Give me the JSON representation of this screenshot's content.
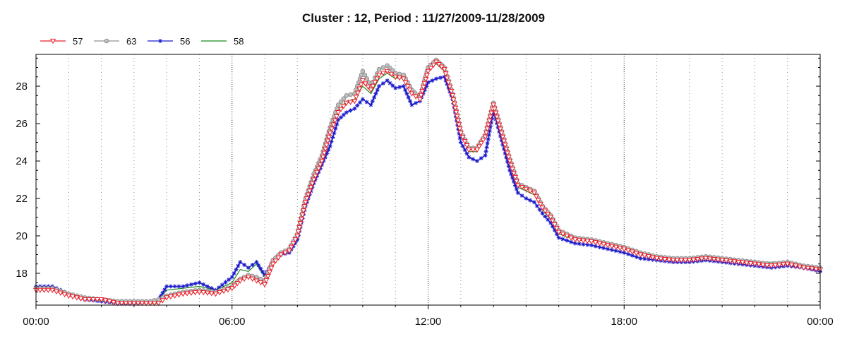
{
  "chart_data": {
    "type": "line",
    "title": "Cluster : 12, Period : 11/27/2009-11/28/2009",
    "xlabel": "",
    "ylabel": "",
    "x_ticks": [
      "00:00",
      "06:00",
      "12:00",
      "18:00",
      "00:00"
    ],
    "x_tick_hours": [
      0,
      6,
      12,
      18,
      24
    ],
    "y_ticks": [
      18,
      20,
      22,
      24,
      26,
      28
    ],
    "xlim": [
      0,
      24
    ],
    "ylim": [
      16.3,
      29.7
    ],
    "grid": true,
    "legend_position": "top-left",
    "series": [
      {
        "name": "57",
        "color": "#e8202a",
        "marker": "triangle-down",
        "x": [
          0,
          0.5,
          1,
          1.5,
          2,
          2.5,
          3,
          3.5,
          3.75,
          4,
          4.5,
          5,
          5.5,
          6,
          6.25,
          6.5,
          6.75,
          7,
          7.25,
          7.5,
          7.75,
          8,
          8.25,
          8.5,
          8.75,
          9,
          9.25,
          9.5,
          9.75,
          10,
          10.25,
          10.5,
          10.75,
          11,
          11.25,
          11.5,
          11.75,
          12,
          12.25,
          12.5,
          12.75,
          13,
          13.25,
          13.5,
          13.75,
          14,
          14.25,
          14.5,
          14.75,
          15,
          15.25,
          15.5,
          15.75,
          16,
          16.5,
          17,
          17.5,
          18,
          18.5,
          19,
          19.5,
          20,
          20.5,
          21,
          21.5,
          22,
          22.5,
          23,
          23.5,
          24
        ],
        "y": [
          17.1,
          17.1,
          16.8,
          16.6,
          16.6,
          16.4,
          16.4,
          16.4,
          16.4,
          16.7,
          16.9,
          17.0,
          16.9,
          17.2,
          17.6,
          17.8,
          17.6,
          17.4,
          18.5,
          19.0,
          19.2,
          20.0,
          21.8,
          23.0,
          24.0,
          25.5,
          26.6,
          27.1,
          27.2,
          28.3,
          27.8,
          28.6,
          28.8,
          28.5,
          28.4,
          27.6,
          27.3,
          28.8,
          29.3,
          28.9,
          27.5,
          25.5,
          24.6,
          24.6,
          25.3,
          27.0,
          25.5,
          24.0,
          22.7,
          22.5,
          22.3,
          21.5,
          21.0,
          20.2,
          19.8,
          19.7,
          19.5,
          19.3,
          19.0,
          18.8,
          18.7,
          18.7,
          18.8,
          18.7,
          18.6,
          18.5,
          18.4,
          18.5,
          18.3,
          18.2
        ]
      },
      {
        "name": "63",
        "color": "#909090",
        "marker": "circle",
        "x": [
          0,
          0.5,
          1,
          1.5,
          2,
          2.5,
          3,
          3.5,
          3.75,
          4,
          4.5,
          5,
          5.5,
          6,
          6.25,
          6.5,
          6.75,
          7,
          7.25,
          7.5,
          7.75,
          8,
          8.25,
          8.5,
          8.75,
          9,
          9.25,
          9.5,
          9.75,
          10,
          10.25,
          10.5,
          10.75,
          11,
          11.25,
          11.5,
          11.75,
          12,
          12.25,
          12.5,
          12.75,
          13,
          13.25,
          13.5,
          13.75,
          14,
          14.25,
          14.5,
          14.75,
          15,
          15.25,
          15.5,
          15.75,
          16,
          16.5,
          17,
          17.5,
          18,
          18.5,
          19,
          19.5,
          20,
          20.5,
          21,
          21.5,
          22,
          22.5,
          23,
          23.5,
          24
        ],
        "y": [
          17.2,
          17.2,
          16.9,
          16.7,
          16.6,
          16.5,
          16.5,
          16.5,
          16.6,
          16.8,
          17.0,
          17.1,
          17.0,
          17.3,
          17.7,
          17.9,
          17.8,
          17.6,
          18.7,
          19.1,
          19.3,
          20.1,
          22.0,
          23.3,
          24.3,
          25.8,
          27.0,
          27.5,
          27.6,
          28.8,
          28.0,
          28.9,
          29.1,
          28.7,
          28.6,
          27.8,
          27.4,
          29.0,
          29.4,
          29.0,
          27.6,
          25.6,
          24.7,
          24.7,
          25.4,
          27.1,
          25.6,
          24.1,
          22.8,
          22.6,
          22.4,
          21.6,
          21.1,
          20.3,
          19.9,
          19.8,
          19.6,
          19.4,
          19.1,
          18.9,
          18.8,
          18.8,
          18.9,
          18.8,
          18.7,
          18.6,
          18.5,
          18.6,
          18.4,
          18.3
        ]
      },
      {
        "name": "56",
        "color": "#1a1acc",
        "marker": "star",
        "x": [
          0,
          0.5,
          1,
          1.5,
          2,
          2.5,
          3,
          3.5,
          3.75,
          4,
          4.5,
          5,
          5.5,
          6,
          6.25,
          6.5,
          6.75,
          7,
          7.25,
          7.5,
          7.75,
          8,
          8.25,
          8.5,
          8.75,
          9,
          9.25,
          9.5,
          9.75,
          10,
          10.25,
          10.5,
          10.75,
          11,
          11.25,
          11.5,
          11.75,
          12,
          12.25,
          12.5,
          12.75,
          13,
          13.25,
          13.5,
          13.75,
          14,
          14.25,
          14.5,
          14.75,
          15,
          15.25,
          15.5,
          15.75,
          16,
          16.5,
          17,
          17.5,
          18,
          18.5,
          19,
          19.5,
          20,
          20.5,
          21,
          21.5,
          22,
          22.5,
          23,
          23.5,
          24
        ],
        "y": [
          17.3,
          17.3,
          16.9,
          16.6,
          16.5,
          16.4,
          16.4,
          16.5,
          16.6,
          17.3,
          17.3,
          17.5,
          17.1,
          17.8,
          18.6,
          18.3,
          18.6,
          17.9,
          18.6,
          19.0,
          19.1,
          19.8,
          21.6,
          22.8,
          23.8,
          24.8,
          26.2,
          26.6,
          26.8,
          27.3,
          27.0,
          28.0,
          28.3,
          27.9,
          28.0,
          27.0,
          27.2,
          28.2,
          28.4,
          28.5,
          27.3,
          25.0,
          24.2,
          24.0,
          24.3,
          26.7,
          25.1,
          23.5,
          22.3,
          22.0,
          21.8,
          21.2,
          20.7,
          19.9,
          19.6,
          19.5,
          19.3,
          19.1,
          18.8,
          18.7,
          18.6,
          18.6,
          18.7,
          18.6,
          18.5,
          18.4,
          18.3,
          18.4,
          18.3,
          18.1
        ]
      },
      {
        "name": "58",
        "color": "#1a8a1a",
        "marker": "none",
        "x": [
          0,
          0.5,
          1,
          1.5,
          2,
          2.5,
          3,
          3.5,
          3.75,
          4,
          4.5,
          5,
          5.5,
          6,
          6.25,
          6.5,
          6.75,
          7,
          7.25,
          7.5,
          7.75,
          8,
          8.25,
          8.5,
          8.75,
          9,
          9.25,
          9.5,
          9.75,
          10,
          10.25,
          10.5,
          10.75,
          11,
          11.25,
          11.5,
          11.75,
          12,
          12.25,
          12.5,
          12.75,
          13,
          13.25,
          13.5,
          13.75,
          14,
          14.25,
          14.5,
          14.75,
          15,
          15.25,
          15.5,
          15.75,
          16,
          16.5,
          17,
          17.5,
          18,
          18.5,
          19,
          19.5,
          20,
          20.5,
          21,
          21.5,
          22,
          22.5,
          23,
          23.5,
          24
        ],
        "y": [
          17.2,
          17.2,
          16.9,
          16.7,
          16.6,
          16.5,
          16.4,
          16.5,
          16.6,
          17.1,
          17.2,
          17.3,
          17.1,
          17.5,
          18.2,
          18.1,
          18.5,
          17.8,
          18.6,
          19.1,
          19.2,
          20.0,
          21.9,
          23.1,
          24.1,
          25.6,
          26.7,
          27.2,
          27.3,
          28.0,
          27.6,
          28.4,
          28.7,
          28.4,
          28.5,
          27.8,
          27.5,
          28.9,
          29.2,
          28.8,
          27.4,
          25.4,
          24.5,
          24.5,
          25.2,
          27.2,
          25.4,
          23.9,
          22.6,
          22.4,
          22.2,
          21.4,
          20.9,
          20.1,
          19.8,
          19.7,
          19.5,
          19.3,
          19.0,
          18.8,
          18.7,
          18.7,
          18.8,
          18.7,
          18.6,
          18.5,
          18.6,
          18.6,
          18.4,
          18.2
        ]
      }
    ]
  }
}
